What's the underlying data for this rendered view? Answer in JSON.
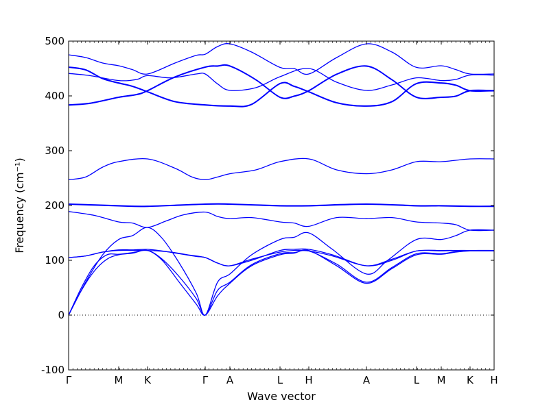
{
  "chart_data": {
    "type": "line",
    "title": "",
    "xlabel": "Wave vector",
    "ylabel": "Frequency (cm⁻¹)",
    "ylim": [
      -100,
      500
    ],
    "xlim": [
      0,
      1
    ],
    "yticks": [
      -100,
      0,
      100,
      200,
      300,
      400,
      500
    ],
    "xticks": [
      {
        "label": "Γ",
        "x": 0.0
      },
      {
        "label": "M",
        "x": 0.1177
      },
      {
        "label": "K",
        "x": 0.1855
      },
      {
        "label": "Γ",
        "x": 0.321
      },
      {
        "label": "A",
        "x": 0.379
      },
      {
        "label": "L",
        "x": 0.4968
      },
      {
        "label": "H",
        "x": 0.5645
      },
      {
        "label": "A",
        "x": 0.7
      },
      {
        "label": "L",
        "x": 0.8177
      },
      {
        "label": "M",
        "x": 0.8758
      },
      {
        "label": "K",
        "x": 0.9435
      },
      {
        "label": "H",
        "x": 1.0
      }
    ],
    "zero_line": {
      "y": 0,
      "style": "dotted"
    },
    "line_color": "#0000ff",
    "series": [
      {
        "x": [
          0.0,
          0.03,
          0.06,
          0.09,
          0.1177,
          0.15,
          0.1855,
          0.22,
          0.26,
          0.3,
          0.321,
          0.35,
          0.379,
          0.43,
          0.4968,
          0.53,
          0.5645,
          0.63,
          0.7,
          0.76,
          0.8177,
          0.8758,
          0.91,
          0.9435,
          1.0
        ],
        "values": [
          0,
          45,
          80,
          102,
          110,
          113,
          118,
          100,
          60,
          20,
          0,
          35,
          58,
          90,
          110,
          113,
          118,
          90,
          58,
          85,
          110,
          111,
          115,
          117,
          117
        ]
      },
      {
        "x": [
          0.0,
          0.03,
          0.06,
          0.09,
          0.1177,
          0.15,
          0.1855,
          0.22,
          0.26,
          0.3,
          0.321,
          0.35,
          0.379,
          0.43,
          0.4968,
          0.53,
          0.5645,
          0.63,
          0.7,
          0.76,
          0.8177,
          0.8758,
          0.91,
          0.9435,
          1.0
        ],
        "values": [
          0,
          50,
          90,
          110,
          111,
          114,
          118,
          102,
          70,
          30,
          0,
          45,
          60,
          92,
          112,
          114,
          117,
          93,
          60,
          87,
          112,
          112,
          116,
          118,
          118
        ]
      },
      {
        "x": [
          0.0,
          0.04,
          0.08,
          0.1177,
          0.15,
          0.1855,
          0.22,
          0.26,
          0.3,
          0.321,
          0.35,
          0.379,
          0.43,
          0.4968,
          0.53,
          0.5645,
          0.62,
          0.7,
          0.75,
          0.8177,
          0.8758,
          0.91,
          0.9435,
          1.0
        ],
        "values": [
          0,
          60,
          110,
          138,
          145,
          160,
          140,
          95,
          40,
          0,
          60,
          75,
          110,
          138,
          142,
          150,
          120,
          75,
          100,
          138,
          138,
          145,
          155,
          155
        ]
      },
      {
        "x": [
          0.0,
          0.04,
          0.08,
          0.1177,
          0.15,
          0.1855,
          0.22,
          0.26,
          0.3,
          0.321,
          0.35,
          0.379,
          0.43,
          0.4968,
          0.53,
          0.5645,
          0.62,
          0.7,
          0.76,
          0.8177,
          0.8758,
          0.91,
          0.9435,
          1.0
        ],
        "values": [
          105,
          108,
          115,
          119,
          119,
          120,
          117,
          112,
          107,
          105,
          95,
          90,
          100,
          118,
          120,
          120,
          110,
          90,
          100,
          117,
          117,
          118,
          118,
          118
        ]
      },
      {
        "x": [
          0.0,
          0.04,
          0.08,
          0.1177,
          0.15,
          0.1855,
          0.24,
          0.28,
          0.321,
          0.35,
          0.379,
          0.43,
          0.4968,
          0.53,
          0.5645,
          0.62,
          0.7,
          0.76,
          0.8177,
          0.8758,
          0.91,
          0.9435,
          1.0
        ],
        "values": [
          105,
          108,
          115,
          118,
          118,
          118,
          115,
          110,
          105,
          95,
          90,
          102,
          115,
          118,
          117,
          108,
          90,
          102,
          117,
          118,
          118,
          118,
          118
        ]
      },
      {
        "x": [
          0.0,
          0.06,
          0.1177,
          0.15,
          0.1855,
          0.23,
          0.27,
          0.321,
          0.35,
          0.379,
          0.43,
          0.4968,
          0.53,
          0.5645,
          0.63,
          0.7,
          0.76,
          0.8177,
          0.8758,
          0.91,
          0.9435,
          1.0
        ],
        "values": [
          189,
          182,
          170,
          168,
          160,
          172,
          183,
          188,
          180,
          176,
          178,
          170,
          168,
          162,
          178,
          176,
          178,
          170,
          168,
          165,
          155,
          155
        ]
      },
      {
        "x": [
          0.0,
          0.1177,
          0.1855,
          0.321,
          0.379,
          0.4968,
          0.5645,
          0.7,
          0.8177,
          0.8758,
          0.9435,
          1.0
        ],
        "values": [
          203,
          200,
          199,
          203,
          203,
          200,
          200,
          203,
          200,
          200,
          199,
          199
        ]
      },
      {
        "x": [
          0.0,
          0.1177,
          0.1855,
          0.321,
          0.379,
          0.4968,
          0.5645,
          0.7,
          0.8177,
          0.8758,
          0.9435,
          1.0
        ],
        "values": [
          202,
          199,
          198,
          202,
          202,
          199,
          199,
          202,
          199,
          199,
          198,
          198
        ]
      },
      {
        "x": [
          0.0,
          0.04,
          0.08,
          0.1177,
          0.1855,
          0.25,
          0.29,
          0.321,
          0.35,
          0.379,
          0.44,
          0.4968,
          0.5645,
          0.63,
          0.7,
          0.76,
          0.8177,
          0.8758,
          0.9435,
          1.0
        ],
        "values": [
          247,
          252,
          270,
          280,
          285,
          268,
          252,
          247,
          252,
          258,
          265,
          280,
          285,
          265,
          258,
          265,
          280,
          280,
          285,
          285
        ]
      },
      {
        "x": [
          0.0,
          0.05,
          0.1177,
          0.16,
          0.1855,
          0.25,
          0.321,
          0.35,
          0.379,
          0.44,
          0.4968,
          0.53,
          0.5645,
          0.63,
          0.7,
          0.76,
          0.8177,
          0.8758,
          0.91,
          0.9435,
          1.0
        ],
        "values": [
          384,
          387,
          398,
          403,
          410,
          435,
          453,
          455,
          455,
          430,
          398,
          400,
          410,
          440,
          455,
          430,
          398,
          398,
          400,
          410,
          410
        ]
      },
      {
        "x": [
          0.0,
          0.05,
          0.1177,
          0.16,
          0.1855,
          0.25,
          0.321,
          0.35,
          0.379,
          0.44,
          0.4968,
          0.53,
          0.5645,
          0.63,
          0.7,
          0.76,
          0.8177,
          0.8758,
          0.91,
          0.9435,
          1.0
        ],
        "values": [
          383,
          386,
          397,
          402,
          409,
          434,
          452,
          454,
          454,
          429,
          397,
          399,
          409,
          439,
          454,
          429,
          397,
          397,
          399,
          409,
          409
        ]
      },
      {
        "x": [
          0.0,
          0.04,
          0.08,
          0.1177,
          0.15,
          0.1855,
          0.25,
          0.321,
          0.379,
          0.43,
          0.4968,
          0.53,
          0.5645,
          0.63,
          0.7,
          0.76,
          0.8177,
          0.8758,
          0.91,
          0.9435,
          1.0
        ],
        "values": [
          453,
          448,
          432,
          424,
          418,
          408,
          390,
          384,
          382,
          385,
          423,
          418,
          408,
          388,
          382,
          390,
          423,
          424,
          420,
          410,
          410
        ]
      },
      {
        "x": [
          0.0,
          0.04,
          0.08,
          0.1177,
          0.15,
          0.1855,
          0.25,
          0.321,
          0.379,
          0.43,
          0.4968,
          0.53,
          0.5645,
          0.63,
          0.7,
          0.76,
          0.8177,
          0.8758,
          0.91,
          0.9435,
          1.0
        ],
        "values": [
          452,
          447,
          431,
          423,
          417,
          407,
          389,
          383,
          381,
          384,
          422,
          417,
          407,
          387,
          381,
          389,
          422,
          423,
          419,
          409,
          409
        ]
      },
      {
        "x": [
          0.0,
          0.05,
          0.1177,
          0.16,
          0.1855,
          0.24,
          0.3,
          0.321,
          0.35,
          0.379,
          0.44,
          0.4968,
          0.5645,
          0.63,
          0.7,
          0.76,
          0.8177,
          0.8758,
          0.91,
          0.9435,
          1.0
        ],
        "values": [
          441,
          437,
          428,
          430,
          437,
          433,
          440,
          440,
          422,
          410,
          415,
          435,
          450,
          425,
          410,
          420,
          433,
          428,
          430,
          438,
          438
        ]
      },
      {
        "x": [
          0.0,
          0.04,
          0.08,
          0.1177,
          0.15,
          0.1855,
          0.25,
          0.3,
          0.321,
          0.35,
          0.379,
          0.43,
          0.4968,
          0.53,
          0.5645,
          0.63,
          0.7,
          0.76,
          0.8177,
          0.8758,
          0.91,
          0.9435,
          1.0
        ],
        "values": [
          475,
          470,
          460,
          455,
          448,
          440,
          460,
          474,
          476,
          490,
          495,
          480,
          452,
          450,
          440,
          470,
          495,
          480,
          452,
          455,
          448,
          440,
          440
        ]
      }
    ]
  }
}
